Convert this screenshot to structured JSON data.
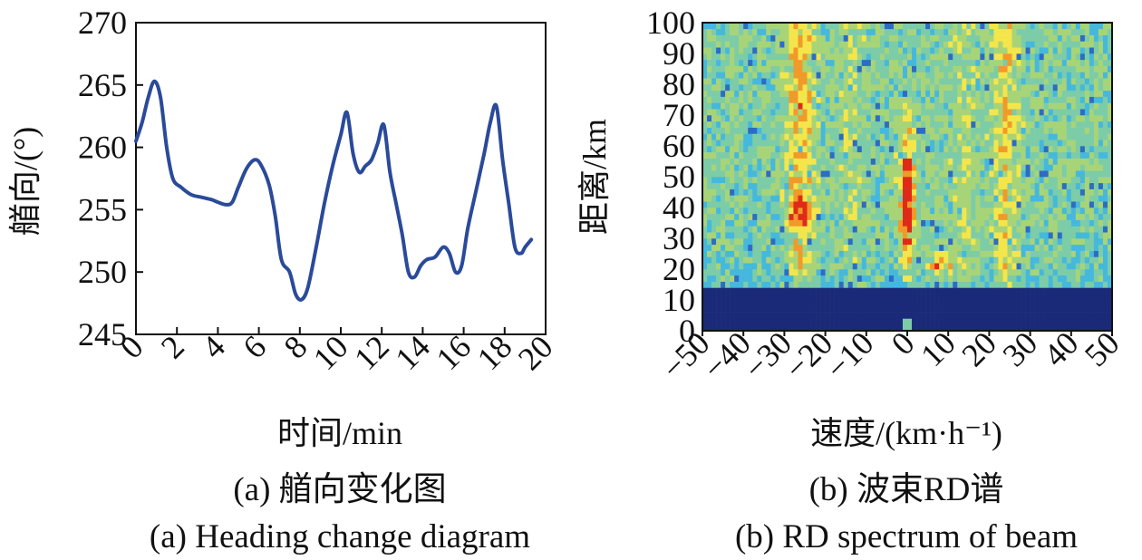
{
  "chart_data": [
    {
      "type": "line",
      "xlabel": "时间/min",
      "ylabel": "艏向/(°)",
      "xlim": [
        0,
        20
      ],
      "ylim": [
        245,
        270
      ],
      "x_ticks": [
        "0",
        "2",
        "4",
        "6",
        "8",
        "10",
        "12",
        "14",
        "16",
        "18",
        "20"
      ],
      "y_ticks": [
        "245",
        "250",
        "255",
        "260",
        "265",
        "270"
      ],
      "line_color": "#2a4a9a",
      "x": [
        0,
        0.3,
        0.6,
        0.9,
        1.2,
        1.5,
        1.8,
        2.2,
        2.7,
        3.2,
        3.7,
        4.0,
        4.4,
        4.7,
        5.0,
        5.4,
        5.8,
        6.1,
        6.5,
        6.8,
        7.1,
        7.5,
        7.8,
        8.1,
        8.4,
        8.8,
        9.2,
        9.6,
        10.0,
        10.3,
        10.6,
        10.9,
        11.2,
        11.5,
        11.8,
        12.1,
        12.4,
        12.7,
        13.0,
        13.3,
        13.6,
        13.9,
        14.2,
        14.6,
        15.0,
        15.3,
        15.6,
        15.9,
        16.2,
        16.6,
        17.0,
        17.3,
        17.6,
        17.9,
        18.2,
        18.5,
        18.8,
        19.0,
        19.3
      ],
      "y": [
        260.5,
        262,
        264,
        265.3,
        264,
        260,
        257.5,
        256.8,
        256.2,
        256,
        255.8,
        255.6,
        255.4,
        255.6,
        256.8,
        258.3,
        259,
        258.6,
        257,
        254.5,
        251,
        250,
        248.2,
        247.8,
        248.8,
        252,
        255.5,
        258.5,
        261,
        262.8,
        259.5,
        258,
        258.5,
        259,
        260.3,
        261.8,
        258,
        255.5,
        253,
        250,
        249.6,
        250.5,
        251,
        251.2,
        252,
        251.5,
        250,
        250.5,
        253.5,
        256.5,
        259.5,
        262,
        263.3,
        259,
        255.5,
        252,
        251.5,
        252,
        252.6
      ]
    },
    {
      "type": "heatmap",
      "xlabel": "速度/(km·h⁻¹)",
      "ylabel": "距离/km",
      "xlim": [
        -50,
        50
      ],
      "ylim": [
        0,
        100
      ],
      "x_ticks": [
        "−50",
        "−40",
        "−30",
        "−20",
        "−10",
        "0",
        "10",
        "20",
        "30",
        "40",
        "50"
      ],
      "y_ticks": [
        "0",
        "10",
        "20",
        "30",
        "40",
        "50",
        "60",
        "70",
        "80",
        "90",
        "100"
      ],
      "colors": {
        "deep": "#1a2a78",
        "blue": "#2d6bc4",
        "cyan": "#45b8dc",
        "teal": "#7ccca8",
        "green": "#a8d478",
        "yellow": "#f4e64a",
        "orange": "#f09a2a",
        "red": "#e02a18"
      }
    }
  ],
  "captions": {
    "a_cn": "(a) 艏向变化图",
    "a_en": "(a) Heading change diagram",
    "b_cn": "(b) 波束RD谱",
    "b_en": "(b) RD spectrum of beam"
  }
}
